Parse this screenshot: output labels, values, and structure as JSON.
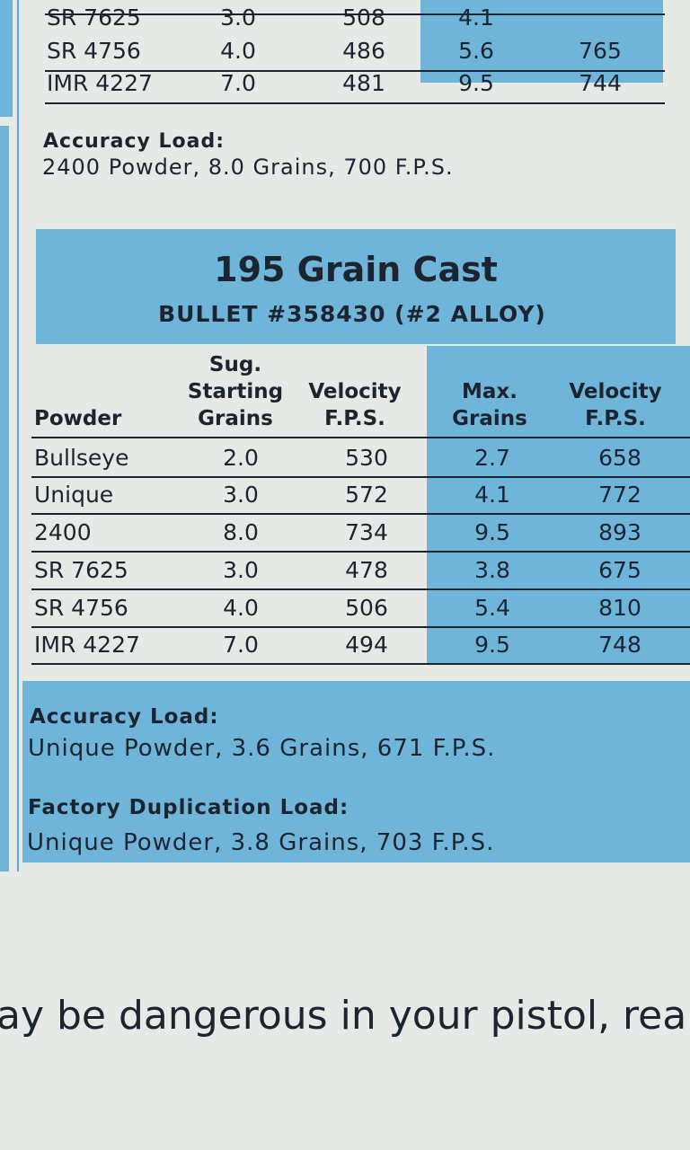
{
  "top_table": {
    "rows": [
      [
        "SR 7625",
        "3.0",
        "508",
        "4.1"
      ],
      [
        "SR 4756",
        "4.0",
        "486",
        "5.6",
        "765"
      ],
      [
        "IMR 4227",
        "7.0",
        "481",
        "9.5",
        "744"
      ]
    ]
  },
  "top_accuracy": {
    "title": "Accuracy Load:",
    "text": "2400 Powder, 8.0 Grains, 700 F.P.S."
  },
  "section": {
    "title": "195 Grain Cast",
    "subtitle": "BULLET #358430 (#2 ALLOY)"
  },
  "table": {
    "headers": [
      [
        "Powder"
      ],
      [
        "Sug.",
        "Starting",
        "Grains"
      ],
      [
        "Velocity",
        "F.P.S."
      ],
      [
        "Max.",
        "Grains"
      ],
      [
        "Velocity",
        "F.P.S."
      ]
    ],
    "rows": [
      [
        "Bullseye",
        "2.0",
        "530",
        "2.7",
        "658"
      ],
      [
        "Unique",
        "3.0",
        "572",
        "4.1",
        "772"
      ],
      [
        "2400",
        "8.0",
        "734",
        "9.5",
        "893"
      ],
      [
        "SR 7625",
        "3.0",
        "478",
        "3.8",
        "675"
      ],
      [
        "SR 4756",
        "4.0",
        "506",
        "5.4",
        "810"
      ],
      [
        "IMR 4227",
        "7.0",
        "494",
        "9.5",
        "748"
      ]
    ]
  },
  "notes": [
    {
      "title": "Accuracy Load:",
      "text": "Unique Powder, 3.6 Grains, 671 F.P.S."
    },
    {
      "title": "Factory Duplication Load:",
      "text": "Unique Powder, 3.8 Grains, 703 F.P.S."
    }
  ],
  "footer": "ay be dangerous in your pistol, rea"
}
